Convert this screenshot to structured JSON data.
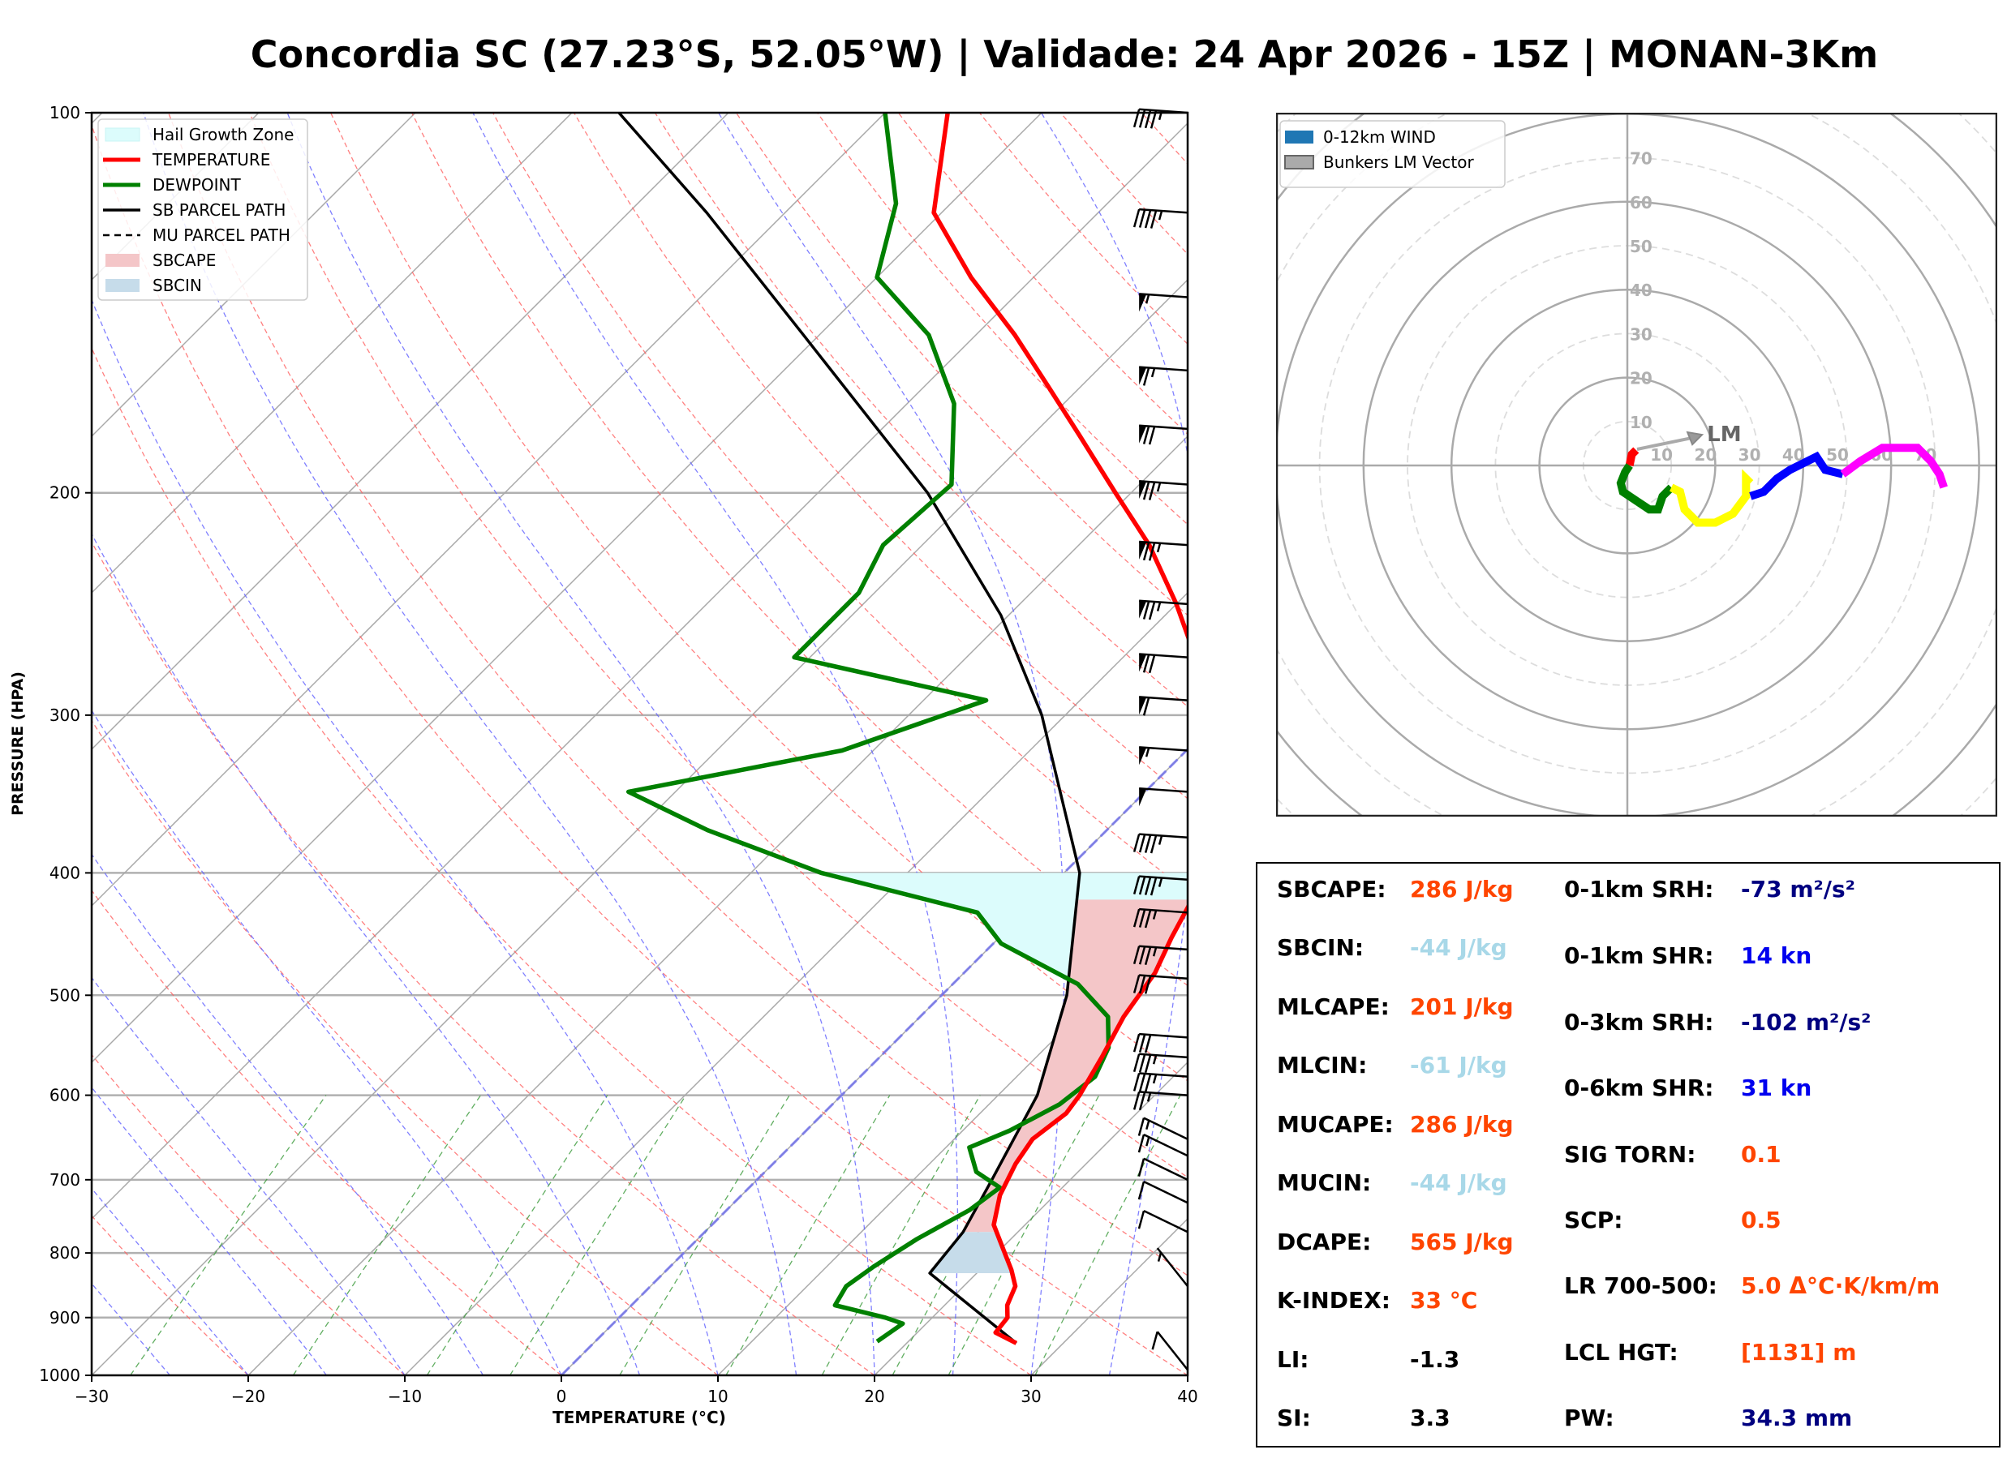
{
  "title": "Concordia SC (27.23°S, 52.05°W) | Validade: 24 Apr 2026 - 15Z | MONAN-3Km",
  "colors": {
    "temperature": "#ff0000",
    "dewpoint": "#008000",
    "parcel": "#000000",
    "sbcape_fill": "#f4c6c8",
    "sbcin_fill": "#c6dcea",
    "hgz_fill": "#dcfcfc",
    "value_orange": "#ff4500",
    "value_lightblue": "#a8d8e8",
    "value_navy": "#000080",
    "value_blue": "#0000ee",
    "value_black": "#000000"
  },
  "chart_data": [
    {
      "type": "line",
      "name": "skew-t",
      "xlabel": "TEMPERATURE (°C)",
      "ylabel": "PRESSURE (HPA)",
      "xlim": [
        -30,
        40
      ],
      "ylim": [
        1000,
        100
      ],
      "yscale": "log",
      "x_ticks": [
        -30,
        -20,
        -10,
        0,
        10,
        20,
        30,
        40
      ],
      "x_tick_labels": [
        "−30",
        "−20",
        "−10",
        "0",
        "10",
        "20",
        "30",
        "40"
      ],
      "y_ticks": [
        100,
        200,
        300,
        400,
        500,
        600,
        700,
        800,
        900,
        1000
      ],
      "grid": true,
      "legend": {
        "placement": "top-left",
        "entries": [
          {
            "label": "Hail Growth Zone",
            "kind": "patch",
            "color": "#dcfcfc"
          },
          {
            "label": "TEMPERATURE",
            "kind": "line",
            "color": "#ff0000"
          },
          {
            "label": "DEWPOINT",
            "kind": "line",
            "color": "#008000"
          },
          {
            "label": "SB PARCEL PATH",
            "kind": "line",
            "color": "#000000"
          },
          {
            "label": "MU PARCEL PATH",
            "kind": "dashed",
            "color": "#000000"
          },
          {
            "label": "SBCAPE",
            "kind": "patch",
            "color": "#f4c6c8"
          },
          {
            "label": "SBCIN",
            "kind": "patch",
            "color": "#c6dcea"
          }
        ]
      },
      "series": [
        {
          "name": "TEMPERATURE",
          "points": [
            [
              943,
              27.0
            ],
            [
              925,
              25.0
            ],
            [
              900,
              24.8
            ],
            [
              880,
              24.0
            ],
            [
              850,
              23.3
            ],
            [
              825,
              22.0
            ],
            [
              800,
              20.5
            ],
            [
              760,
              18.0
            ],
            [
              720,
              16.5
            ],
            [
              680,
              15.5
            ],
            [
              650,
              15.0
            ],
            [
              620,
              15.5
            ],
            [
              600,
              15.2
            ],
            [
              560,
              14.2
            ],
            [
              520,
              13.0
            ],
            [
              480,
              12.2
            ],
            [
              450,
              11.0
            ],
            [
              410,
              9.5
            ],
            [
              385,
              7.0
            ],
            [
              340,
              3.0
            ],
            [
              300,
              -1.0
            ],
            [
              275,
              -4.5
            ],
            [
              245,
              -10.0
            ],
            [
              220,
              -15.5
            ],
            [
              200,
              -21.0
            ],
            [
              180,
              -27.0
            ],
            [
              165,
              -32.0
            ],
            [
              150,
              -37.5
            ],
            [
              135,
              -44.0
            ],
            [
              120,
              -50.5
            ],
            [
              100,
              -56.0
            ]
          ]
        },
        {
          "name": "DEWPOINT",
          "points": [
            [
              940,
              18.0
            ],
            [
              910,
              18.5
            ],
            [
              900,
              17.0
            ],
            [
              880,
              13.0
            ],
            [
              850,
              12.5
            ],
            [
              820,
              13.0
            ],
            [
              780,
              14.0
            ],
            [
              740,
              15.5
            ],
            [
              710,
              16.0
            ],
            [
              690,
              13.5
            ],
            [
              660,
              11.5
            ],
            [
              640,
              13.0
            ],
            [
              610,
              14.5
            ],
            [
              580,
              15.0
            ],
            [
              550,
              14.0
            ],
            [
              520,
              12.0
            ],
            [
              490,
              8.0
            ],
            [
              455,
              0.5
            ],
            [
              430,
              -3.0
            ],
            [
              400,
              -15.5
            ],
            [
              370,
              -25.5
            ],
            [
              345,
              -33.0
            ],
            [
              320,
              -22.0
            ],
            [
              292,
              -16.0
            ],
            [
              270,
              -31.0
            ],
            [
              240,
              -31.0
            ],
            [
              220,
              -32.5
            ],
            [
              197,
              -32.0
            ],
            [
              170,
              -37.0
            ],
            [
              150,
              -43.0
            ],
            [
              135,
              -50.0
            ],
            [
              118,
              -53.5
            ],
            [
              100,
              -60.0
            ]
          ]
        },
        {
          "name": "SB PARCEL PATH",
          "points": [
            [
              943,
              27.0
            ],
            [
              830,
              17.0
            ],
            [
              770,
              16.5
            ],
            [
              700,
              15.0
            ],
            [
              600,
              12.5
            ],
            [
              500,
              8.0
            ],
            [
              400,
              1.0
            ],
            [
              300,
              -11.5
            ],
            [
              250,
              -20.5
            ],
            [
              200,
              -33.0
            ],
            [
              150,
              -51.0
            ],
            [
              120,
              -65.0
            ],
            [
              100,
              -77.0
            ]
          ]
        }
      ],
      "shaded_regions": [
        {
          "name": "Hail Growth Zone",
          "pressure_range": [
            400,
            500
          ]
        },
        {
          "name": "SBCAPE",
          "pressure_range": [
            770,
            420
          ]
        },
        {
          "name": "SBCIN",
          "pressure_range": [
            830,
            770
          ]
        }
      ],
      "wind_barbs": [
        {
          "pressure": 100,
          "speed_kn": 45
        },
        {
          "pressure": 120,
          "speed_kn": 45
        },
        {
          "pressure": 140,
          "speed_kn": 55
        },
        {
          "pressure": 160,
          "speed_kn": 65
        },
        {
          "pressure": 178,
          "speed_kn": 70
        },
        {
          "pressure": 197,
          "speed_kn": 75
        },
        {
          "pressure": 220,
          "speed_kn": 75
        },
        {
          "pressure": 245,
          "speed_kn": 75
        },
        {
          "pressure": 270,
          "speed_kn": 70
        },
        {
          "pressure": 292,
          "speed_kn": 60
        },
        {
          "pressure": 320,
          "speed_kn": 55
        },
        {
          "pressure": 345,
          "speed_kn": 50
        },
        {
          "pressure": 375,
          "speed_kn": 45
        },
        {
          "pressure": 405,
          "speed_kn": 45
        },
        {
          "pressure": 430,
          "speed_kn": 35
        },
        {
          "pressure": 460,
          "speed_kn": 35
        },
        {
          "pressure": 485,
          "speed_kn": 30
        },
        {
          "pressure": 540,
          "speed_kn": 30
        },
        {
          "pressure": 560,
          "speed_kn": 35
        },
        {
          "pressure": 580,
          "speed_kn": 35
        },
        {
          "pressure": 600,
          "speed_kn": 25
        },
        {
          "pressure": 650,
          "speed_kn": 15
        },
        {
          "pressure": 670,
          "speed_kn": 15
        },
        {
          "pressure": 700,
          "speed_kn": 10
        },
        {
          "pressure": 730,
          "speed_kn": 10
        },
        {
          "pressure": 770,
          "speed_kn": 10
        },
        {
          "pressure": 850,
          "speed_kn": 5
        },
        {
          "pressure": 990,
          "speed_kn": 10
        }
      ]
    },
    {
      "type": "line",
      "name": "hodograph",
      "units": "kn",
      "ring_labels": [
        10,
        20,
        30,
        40,
        50,
        60,
        70
      ],
      "ring_interval_kn": 10,
      "legend": {
        "placement": "top-left",
        "entries": [
          {
            "label": "0-12km WIND",
            "color": "#1f77b4"
          },
          {
            "label": "Bunkers LM Vector",
            "color": "#aaaaaa"
          }
        ]
      },
      "bunkers_lm": {
        "label": "LM",
        "u": 17,
        "v": 7
      },
      "segments": [
        {
          "name": "0-1km",
          "color": "#ff0000",
          "points": [
            [
              2,
              3.5
            ],
            [
              1,
              2.5
            ],
            [
              0.5,
              0
            ]
          ]
        },
        {
          "name": "1-3km",
          "color": "#008000",
          "points": [
            [
              0.5,
              0
            ],
            [
              -0.5,
              -1.5
            ],
            [
              -1.5,
              -4
            ],
            [
              -1,
              -6
            ],
            [
              2,
              -8
            ],
            [
              5,
              -10
            ],
            [
              7,
              -10
            ],
            [
              8,
              -7
            ],
            [
              10,
              -5
            ]
          ]
        },
        {
          "name": "3-6km",
          "color": "#ffff00",
          "points": [
            [
              10,
              -5
            ],
            [
              12,
              -6
            ],
            [
              13,
              -10
            ],
            [
              16,
              -13
            ],
            [
              20,
              -13
            ],
            [
              24,
              -11
            ],
            [
              27,
              -7
            ],
            [
              27,
              -3
            ],
            [
              28,
              -4
            ]
          ]
        },
        {
          "name": "6-9km",
          "color": "#0000ff",
          "points": [
            [
              28,
              -7
            ],
            [
              31,
              -6
            ],
            [
              34,
              -3
            ],
            [
              37,
              -1
            ],
            [
              43,
              2
            ],
            [
              45,
              -1
            ],
            [
              49,
              -2
            ]
          ]
        },
        {
          "name": "9-12km",
          "color": "#ff00ff",
          "points": [
            [
              49,
              -2
            ],
            [
              53,
              1
            ],
            [
              58,
              4
            ],
            [
              66,
              4
            ],
            [
              69,
              1
            ],
            [
              71,
              -2
            ],
            [
              72,
              -5
            ]
          ]
        }
      ]
    }
  ],
  "indices": {
    "left": [
      {
        "label": "SBCAPE:",
        "value": "286 J/kg",
        "color": "#ff4500"
      },
      {
        "label": "SBCIN:",
        "value": "-44 J/kg",
        "color": "#a8d8e8"
      },
      {
        "label": "MLCAPE:",
        "value": "201 J/kg",
        "color": "#ff4500"
      },
      {
        "label": "MLCIN:",
        "value": "-61 J/kg",
        "color": "#a8d8e8"
      },
      {
        "label": "MUCAPE:",
        "value": "286 J/kg",
        "color": "#ff4500"
      },
      {
        "label": "MUCIN:",
        "value": "-44 J/kg",
        "color": "#a8d8e8"
      },
      {
        "label": "DCAPE:",
        "value": "565 J/kg",
        "color": "#ff4500"
      },
      {
        "label": "K-INDEX:",
        "value": "33 °C",
        "color": "#ff4500"
      },
      {
        "label": "LI:",
        "value": "-1.3",
        "color": "#000000"
      },
      {
        "label": "SI:",
        "value": "3.3",
        "color": "#000000"
      }
    ],
    "right": [
      {
        "label": "0-1km SRH:",
        "value": "-73 m²/s²",
        "color": "#000080"
      },
      {
        "label": "0-1km SHR:",
        "value": "14 kn",
        "color": "#0000ee"
      },
      {
        "label": "0-3km SRH:",
        "value": "-102 m²/s²",
        "color": "#000080"
      },
      {
        "label": "0-6km SHR:",
        "value": "31 kn",
        "color": "#0000ee"
      },
      {
        "label": "SIG TORN:",
        "value": "0.1",
        "color": "#ff4500"
      },
      {
        "label": "SCP:",
        "value": "0.5",
        "color": "#ff4500"
      },
      {
        "label": "LR 700-500:",
        "value": "5.0 Δ°C·K/km/m",
        "color": "#ff4500"
      },
      {
        "label": "LCL HGT:",
        "value": "[1131] m",
        "color": "#ff4500"
      },
      {
        "label": "PW:",
        "value": "34.3 mm",
        "color": "#000080"
      }
    ]
  }
}
